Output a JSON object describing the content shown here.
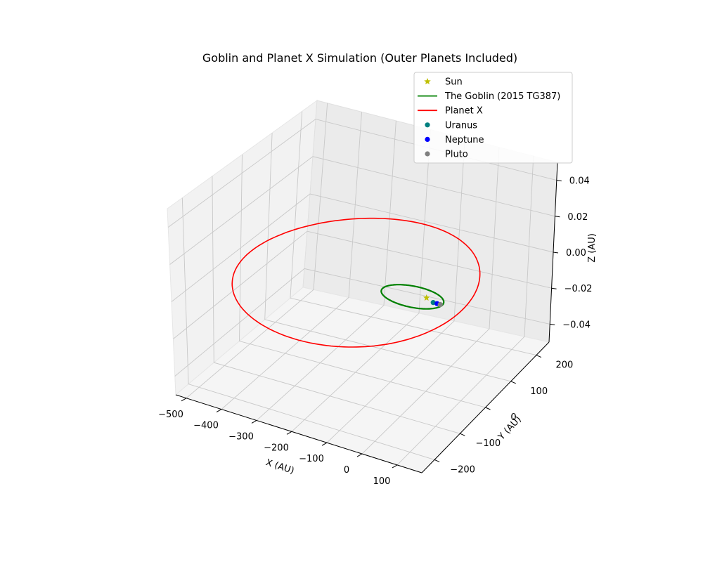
{
  "chart_data": {
    "type": "line",
    "title": "Goblin and Planet X Simulation (Outer Planets Included)",
    "xlabel": "X (AU)",
    "ylabel": "Y (AU)",
    "zlabel": "Z (AU)",
    "x_ticks": [
      "−500",
      "−400",
      "−300",
      "−200",
      "−100",
      "0",
      "100"
    ],
    "y_ticks": [
      "−200",
      "−100",
      "0",
      "100",
      "200"
    ],
    "z_ticks": [
      "−0.04",
      "−0.02",
      "0.00",
      "0.02",
      "0.04"
    ],
    "grid": true,
    "legend_position": "top-right",
    "legend": [
      {
        "label": "Sun",
        "color": "#bfbf00",
        "marker": "star"
      },
      {
        "label": "The Goblin (2015 TG387)",
        "color": "#008000",
        "marker": "line"
      },
      {
        "label": "Planet X",
        "color": "#ff0000",
        "marker": "line"
      },
      {
        "label": "Uranus",
        "color": "#008080",
        "marker": "dot"
      },
      {
        "label": "Neptune",
        "color": "#0000ff",
        "marker": "dot"
      },
      {
        "label": "Pluto",
        "color": "#808080",
        "marker": "dot"
      }
    ],
    "series": [
      {
        "name": "The Goblin (2015 TG387)",
        "kind": "orbit",
        "center": [
          -40,
          0,
          0
        ],
        "radii": [
          85,
          35
        ]
      },
      {
        "name": "Planet X",
        "kind": "orbit",
        "center": [
          -200,
          0,
          0
        ],
        "radii": [
          300,
          240
        ]
      },
      {
        "name": "Sun",
        "kind": "point",
        "xyz": [
          0,
          0,
          0
        ]
      },
      {
        "name": "Uranus",
        "kind": "point",
        "xyz": [
          19,
          0,
          0
        ]
      },
      {
        "name": "Neptune",
        "kind": "point",
        "xyz": [
          30,
          0,
          0
        ]
      },
      {
        "name": "Pluto",
        "kind": "point",
        "xyz": [
          39,
          0,
          0
        ]
      }
    ]
  }
}
